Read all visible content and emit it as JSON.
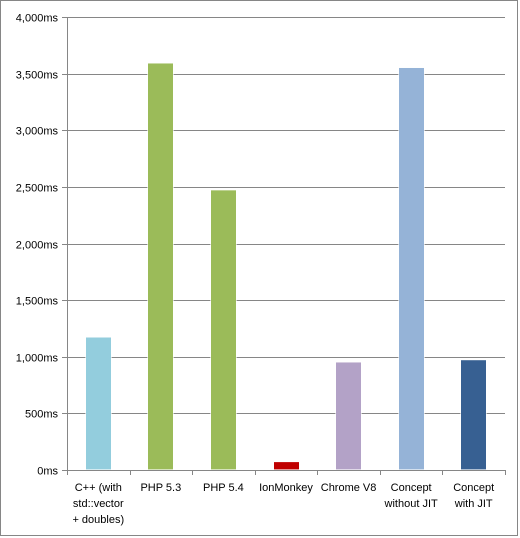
{
  "chart_data": {
    "type": "bar",
    "title": "",
    "xlabel": "",
    "ylabel": "",
    "ylim": [
      0,
      4000
    ],
    "y_ticks": [
      "0ms",
      "500ms",
      "1,000ms",
      "1,500ms",
      "2,000ms",
      "2,500ms",
      "3,000ms",
      "3,500ms",
      "4,000ms"
    ],
    "y_tick_values": [
      0,
      500,
      1000,
      1500,
      2000,
      2500,
      3000,
      3500,
      4000
    ],
    "grid": true,
    "legend": "none",
    "categories": [
      [
        "C++ (with",
        "std::vector",
        "+ doubles)"
      ],
      [
        "PHP 5.3"
      ],
      [
        "PHP 5.4"
      ],
      [
        "IonMonkey"
      ],
      [
        "Chrome V8"
      ],
      [
        "Concept",
        "without JIT"
      ],
      [
        "Concept",
        "with JIT"
      ]
    ],
    "values": [
      1170,
      3590,
      2470,
      70,
      950,
      3550,
      970
    ],
    "colors": [
      "#93cddd",
      "#9bbb59",
      "#9bbb59",
      "#c00000",
      "#b3a2c7",
      "#95b3d7",
      "#376092"
    ]
  }
}
